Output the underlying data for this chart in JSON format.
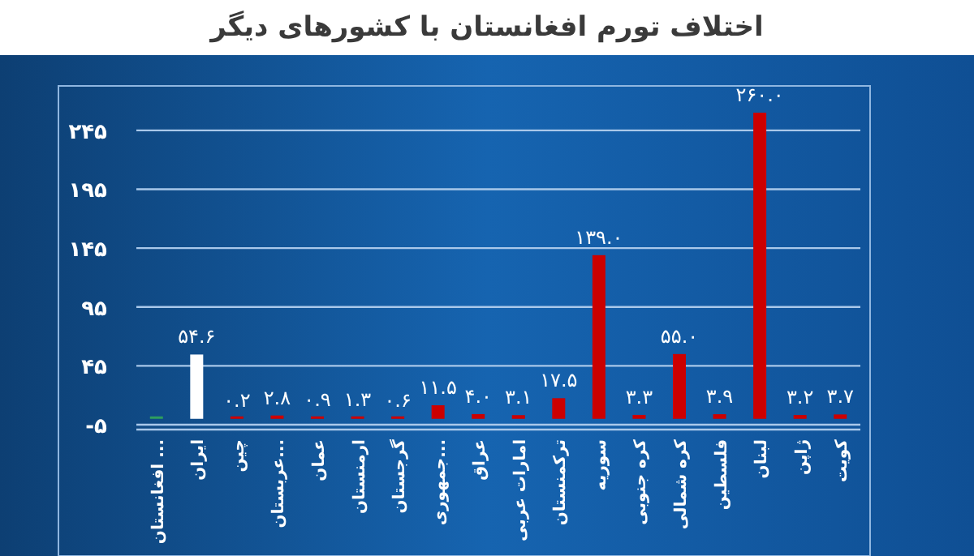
{
  "chart_data": {
    "type": "bar",
    "title": "اختلاف تورم افغانستان با کشورهای دیگر",
    "categories": [
      "افغانستان ...",
      "ایران",
      "چین",
      "عربستان...",
      "عمان",
      "ارمنستان",
      "گرجستان",
      "جمهوری...",
      "عراق",
      "امارات عربی",
      "ترکمنستان",
      "سوریه",
      "کره جنوبی",
      "کره شمالی",
      "فلسطین",
      "لبنان",
      "ژاپن",
      "کویت"
    ],
    "values": [
      0,
      54.6,
      0.2,
      2.8,
      0.9,
      1.3,
      0.6,
      11.5,
      4.0,
      3.1,
      17.5,
      139.0,
      3.3,
      55.0,
      3.9,
      260.0,
      3.2,
      3.7
    ],
    "colors": [
      "#2e9e5e",
      "#ffffff",
      "#cc0000",
      "#cc0000",
      "#cc0000",
      "#cc0000",
      "#cc0000",
      "#cc0000",
      "#cc0000",
      "#cc0000",
      "#cc0000",
      "#cc0000",
      "#cc0000",
      "#cc0000",
      "#cc0000",
      "#cc0000",
      "#cc0000",
      "#cc0000"
    ],
    "value_labels": [
      null,
      "۵۴.۶",
      "۰.۲",
      "۲.۸",
      "۰.۹",
      "۱.۳",
      "۰.۶",
      "۱۱.۵",
      "۴.۰",
      "۳.۱",
      "۱۷.۵",
      "۱۳۹.۰",
      "۳.۳",
      "۵۵.۰",
      "۳.۹",
      "۲۶۰.۰",
      "۳.۲",
      "۳.۷"
    ],
    "ylim": [
      -5,
      280
    ],
    "yticks": [
      {
        "value": -5,
        "label": "-۵"
      },
      {
        "value": 45,
        "label": "۴۵"
      },
      {
        "value": 95,
        "label": "۹۵"
      },
      {
        "value": 145,
        "label": "۱۴۵"
      },
      {
        "value": 195,
        "label": "۱۹۵"
      },
      {
        "value": 245,
        "label": "۲۴۵"
      }
    ],
    "grid": "y"
  }
}
